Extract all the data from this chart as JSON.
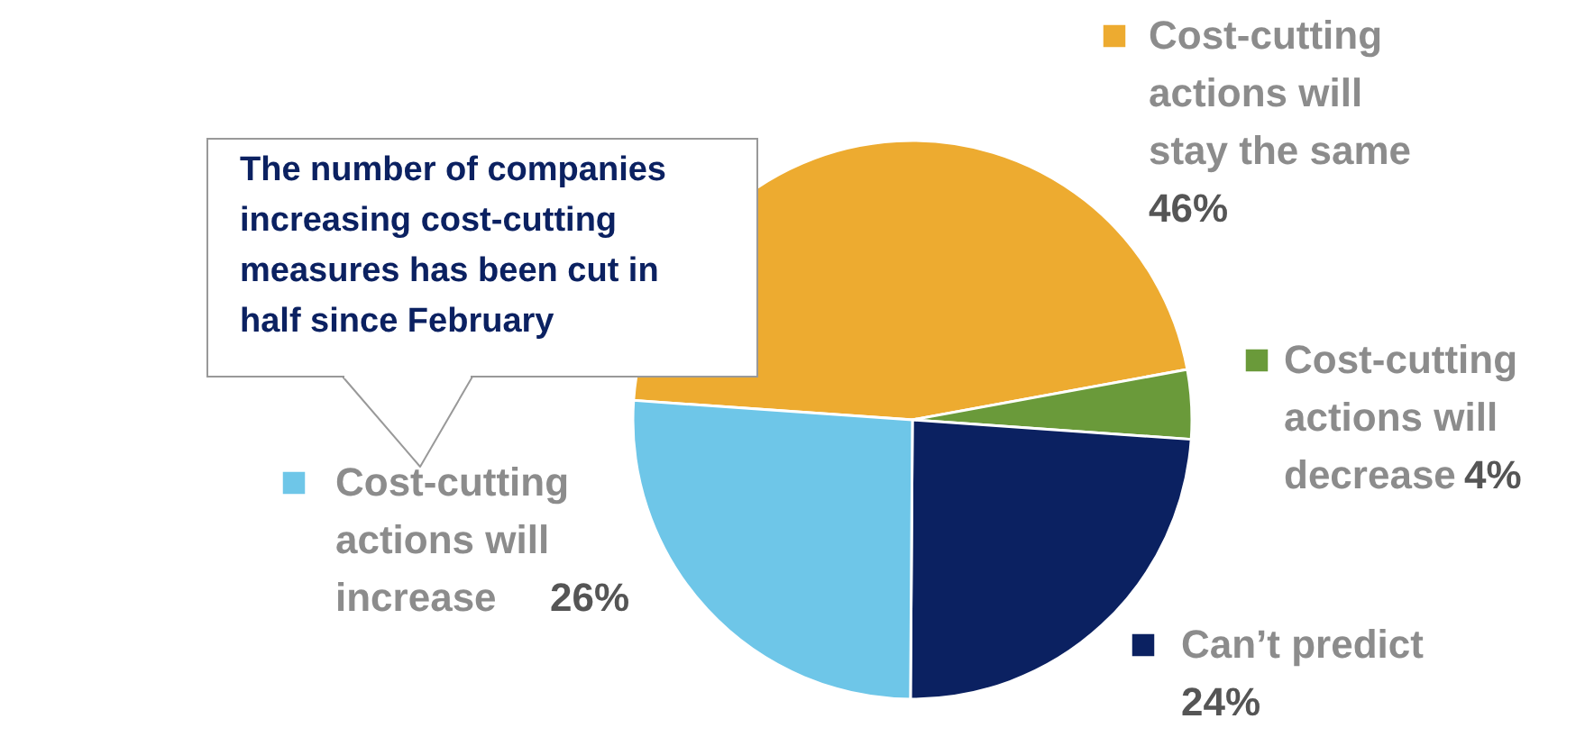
{
  "chart_data": {
    "type": "pie",
    "categories": [
      "Cost-cutting actions will stay the same",
      "Cost-cutting actions will decrease",
      "Can’t predict",
      "Cost-cutting actions will increase"
    ],
    "values": [
      46,
      4,
      24,
      26
    ],
    "colors": [
      "#edab30",
      "#6a9a3a",
      "#0b2161",
      "#6ec6e8"
    ],
    "value_labels": [
      "46%",
      "4%",
      "24%",
      "26%"
    ],
    "legend": "right",
    "annotations": [
      "The number of companies increasing cost-cutting measures has been cut in half since February"
    ]
  }
}
